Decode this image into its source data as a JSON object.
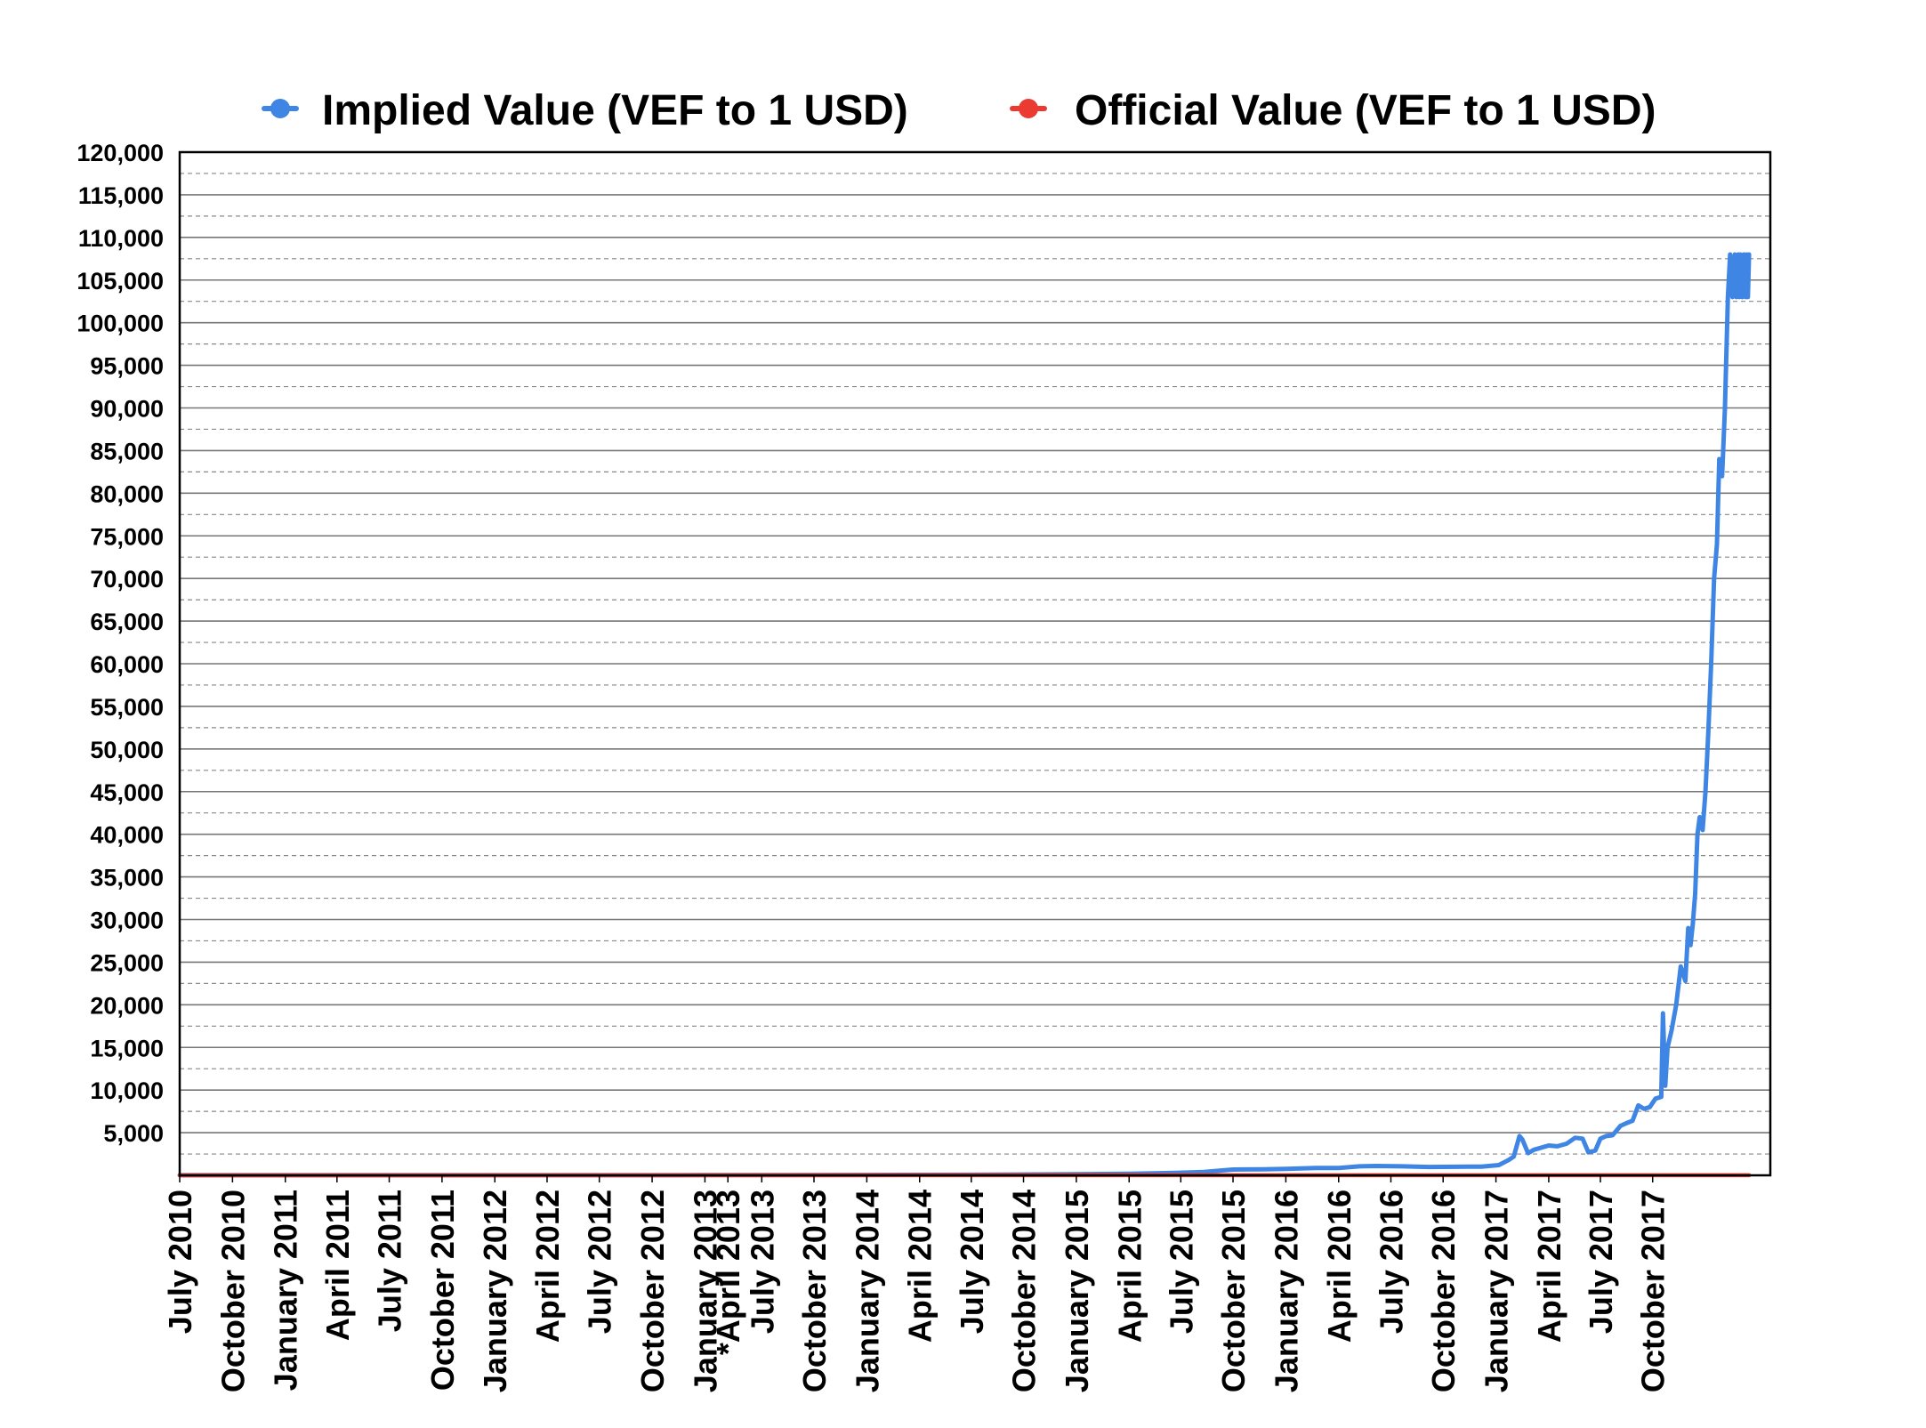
{
  "chart_data": {
    "type": "line",
    "title": "",
    "xlabel": "",
    "ylabel": "",
    "ylim": [
      0,
      120000
    ],
    "yticks": [
      5000,
      10000,
      15000,
      20000,
      25000,
      30000,
      35000,
      40000,
      45000,
      50000,
      55000,
      60000,
      65000,
      70000,
      75000,
      80000,
      85000,
      90000,
      95000,
      100000,
      105000,
      110000,
      115000,
      120000
    ],
    "ytick_labels": [
      "5,000",
      "10,000",
      "15,000",
      "20,000",
      "25,000",
      "30,000",
      "35,000",
      "40,000",
      "45,000",
      "50,000",
      "55,000",
      "60,000",
      "65,000",
      "70,000",
      "75,000",
      "80,000",
      "85,000",
      "90,000",
      "95,000",
      "100,000",
      "105,000",
      "110,000",
      "115,000",
      "120,000"
    ],
    "xlim": [
      "2010-07-01",
      "2018-01-31"
    ],
    "x_ticks": [
      {
        "label": "July 2010",
        "date": "2010-07-01"
      },
      {
        "label": "October 2010",
        "date": "2010-10-01"
      },
      {
        "label": "January 2011",
        "date": "2011-01-01"
      },
      {
        "label": "April 2011",
        "date": "2011-04-01"
      },
      {
        "label": "July 2011",
        "date": "2011-07-01"
      },
      {
        "label": "October 2011",
        "date": "2011-10-01"
      },
      {
        "label": "January 2012",
        "date": "2012-01-01"
      },
      {
        "label": "April 2012",
        "date": "2012-04-01"
      },
      {
        "label": "July 2012",
        "date": "2012-07-01"
      },
      {
        "label": "October 2012",
        "date": "2012-10-01"
      },
      {
        "label": "January 2013",
        "date": "2013-01-01"
      },
      {
        "label": "*April 2013",
        "date": "2013-02-10"
      },
      {
        "label": "July 2013",
        "date": "2013-04-10"
      },
      {
        "label": "October 2013",
        "date": "2013-07-10"
      },
      {
        "label": "January 2014",
        "date": "2013-10-10"
      },
      {
        "label": "April 2014",
        "date": "2014-01-10"
      },
      {
        "label": "July 2014",
        "date": "2014-04-10"
      },
      {
        "label": "October 2014",
        "date": "2014-07-10"
      },
      {
        "label": "January 2015",
        "date": "2014-10-10"
      },
      {
        "label": "April 2015",
        "date": "2015-01-10"
      },
      {
        "label": "July 2015",
        "date": "2015-04-10"
      },
      {
        "label": "October 2015",
        "date": "2015-07-10"
      },
      {
        "label": "January 2016",
        "date": "2015-10-10"
      },
      {
        "label": "April 2016",
        "date": "2016-01-10"
      },
      {
        "label": "July 2016",
        "date": "2016-04-10"
      },
      {
        "label": "October 2016",
        "date": "2016-07-10"
      },
      {
        "label": "January 2017",
        "date": "2016-10-10"
      },
      {
        "label": "April 2017",
        "date": "2017-01-10"
      },
      {
        "label": "July 2017",
        "date": "2017-04-10"
      },
      {
        "label": "October 2017",
        "date": "2017-07-10"
      }
    ],
    "grid": true,
    "legend_position": "top",
    "series": [
      {
        "name": "Implied Value (VEF to 1 USD)",
        "color": "#3F86E4",
        "x": [
          "2010-07-01",
          "2011-07-01",
          "2012-04-01",
          "2012-10-01",
          "2013-01-01",
          "2013-04-10",
          "2013-10-10",
          "2014-04-10",
          "2014-10-10",
          "2015-01-10",
          "2015-04-01",
          "2015-05-20",
          "2015-07-10",
          "2015-09-01",
          "2015-10-10",
          "2015-12-01",
          "2016-01-10",
          "2016-02-15",
          "2016-03-15",
          "2016-05-01",
          "2016-06-15",
          "2016-08-01",
          "2016-09-15",
          "2016-10-15",
          "2016-11-01",
          "2016-11-10",
          "2016-11-20",
          "2016-11-25",
          "2016-12-05",
          "2016-12-15",
          "2017-01-10",
          "2017-01-25",
          "2017-02-10",
          "2017-02-25",
          "2017-03-10",
          "2017-03-20",
          "2017-04-01",
          "2017-04-10",
          "2017-04-20",
          "2017-05-01",
          "2017-05-15",
          "2017-05-25",
          "2017-06-05",
          "2017-06-15",
          "2017-06-25",
          "2017-07-05",
          "2017-07-15",
          "2017-07-25",
          "2017-07-28",
          "2017-08-01",
          "2017-08-05",
          "2017-08-12",
          "2017-08-20",
          "2017-08-28",
          "2017-09-05",
          "2017-09-10",
          "2017-09-14",
          "2017-09-18",
          "2017-09-22",
          "2017-09-26",
          "2017-09-30",
          "2017-10-05",
          "2017-10-10",
          "2017-10-15",
          "2017-10-20",
          "2017-10-25",
          "2017-10-30",
          "2017-11-03",
          "2017-11-08",
          "2017-11-13",
          "2017-11-18",
          "2017-11-22",
          "2017-11-26",
          "2017-11-30",
          "2017-12-03",
          "2017-12-06",
          "2017-12-08",
          "2017-12-10",
          "2017-12-13",
          "2017-12-16",
          "2017-12-19",
          "2017-12-21",
          "2017-12-23",
          "2017-12-25"
        ],
        "values": [
          8,
          9,
          10,
          12,
          18,
          22,
          45,
          65,
          130,
          180,
          280,
          400,
          680,
          700,
          750,
          860,
          860,
          1050,
          1100,
          1050,
          980,
          1000,
          1020,
          1200,
          1800,
          2200,
          4600,
          4200,
          2600,
          3000,
          3500,
          3400,
          3700,
          4400,
          4300,
          2700,
          2900,
          4300,
          4600,
          4700,
          5800,
          6100,
          6400,
          8200,
          7800,
          8000,
          9000,
          9200,
          19000,
          10500,
          15000,
          17000,
          20000,
          24500,
          22800,
          29000,
          27000,
          29500,
          33000,
          40000,
          42000,
          40500,
          45000,
          52000,
          60000,
          70000,
          74000,
          84000,
          82000,
          90000,
          103000,
          108000,
          103000,
          108000,
          103000,
          108000,
          103000,
          108000,
          103000,
          108000,
          103000,
          108000,
          103000,
          108000
        ]
      },
      {
        "name": "Official Value (VEF to 1 USD)",
        "color": "#EB3A31",
        "x": [
          "2010-07-01",
          "2013-02-10",
          "2014-03-01",
          "2016-03-01",
          "2017-12-25"
        ],
        "values": [
          4.3,
          6.3,
          10,
          10,
          10
        ]
      }
    ]
  }
}
